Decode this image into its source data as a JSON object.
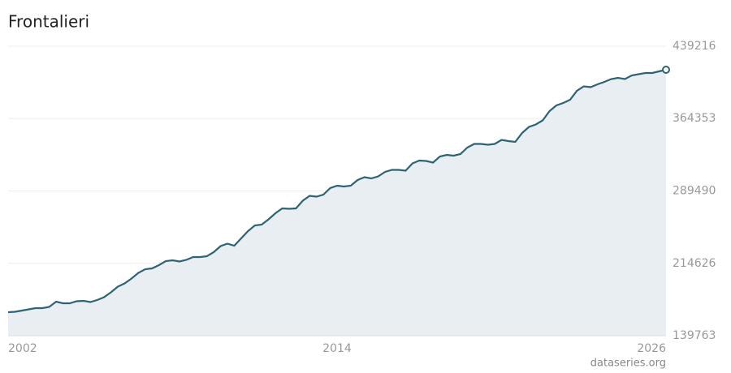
{
  "chart_data": {
    "type": "line",
    "title": "Frontalieri",
    "source": "dataseries.org",
    "x": [
      2002,
      2002.25,
      2002.5,
      2002.75,
      2003,
      2003.25,
      2003.5,
      2003.75,
      2004,
      2004.25,
      2004.5,
      2004.75,
      2005,
      2005.25,
      2005.5,
      2005.75,
      2006,
      2006.25,
      2006.5,
      2006.75,
      2007,
      2007.25,
      2007.5,
      2007.75,
      2008,
      2008.25,
      2008.5,
      2008.75,
      2009,
      2009.25,
      2009.5,
      2009.75,
      2010,
      2010.25,
      2010.5,
      2010.75,
      2011,
      2011.25,
      2011.5,
      2011.75,
      2012,
      2012.25,
      2012.5,
      2012.75,
      2013,
      2013.25,
      2013.5,
      2013.75,
      2014,
      2014.25,
      2014.5,
      2014.75,
      2015,
      2015.25,
      2015.5,
      2015.75,
      2016,
      2016.25,
      2016.5,
      2016.75,
      2017,
      2017.25,
      2017.5,
      2017.75,
      2018,
      2018.25,
      2018.5,
      2018.75,
      2019,
      2019.25,
      2019.5,
      2019.75,
      2020,
      2020.25,
      2020.5,
      2020.75,
      2021,
      2021.25,
      2021.5,
      2021.75,
      2022,
      2022.25,
      2022.5,
      2022.75,
      2023,
      2023.25,
      2023.5,
      2023.75,
      2024,
      2024.25,
      2024.5,
      2024.75,
      2025,
      2025.25,
      2025.5,
      2025.75,
      2026
    ],
    "series": [
      {
        "name": "Frontalieri",
        "color": "#2e6472",
        "fill": "#e8eef1",
        "values": [
          164090,
          164510,
          165770,
          167020,
          168280,
          168280,
          169540,
          174990,
          173320,
          173320,
          175410,
          175830,
          174570,
          176670,
          179610,
          184640,
          190510,
          193870,
          198900,
          204770,
          208540,
          209380,
          212740,
          216930,
          217770,
          216510,
          218190,
          221130,
          221130,
          221970,
          226160,
          232450,
          234970,
          232870,
          240420,
          247970,
          253840,
          254680,
          260130,
          266420,
          271450,
          271040,
          271450,
          279420,
          284460,
          283620,
          285710,
          292430,
          294940,
          294100,
          294940,
          300810,
          303750,
          302490,
          304590,
          309200,
          311300,
          311300,
          310460,
          318010,
          320940,
          320520,
          318850,
          325140,
          326820,
          325980,
          327650,
          334370,
          338140,
          338140,
          337300,
          338140,
          342330,
          341080,
          340240,
          349460,
          355750,
          358270,
          362460,
          372110,
          377980,
          380500,
          383850,
          393080,
          397690,
          396860,
          399790,
          402310,
          405240,
          406500,
          405240,
          409020,
          410280,
          411530,
          411530,
          413210,
          414890
        ]
      }
    ],
    "xlim": [
      2002,
      2026
    ],
    "xticks": [
      2002,
      2014,
      2026
    ],
    "ylim": [
      139763,
      439216
    ],
    "yticks": [
      139763,
      214626,
      289490,
      364353,
      439216
    ],
    "grid": true
  }
}
